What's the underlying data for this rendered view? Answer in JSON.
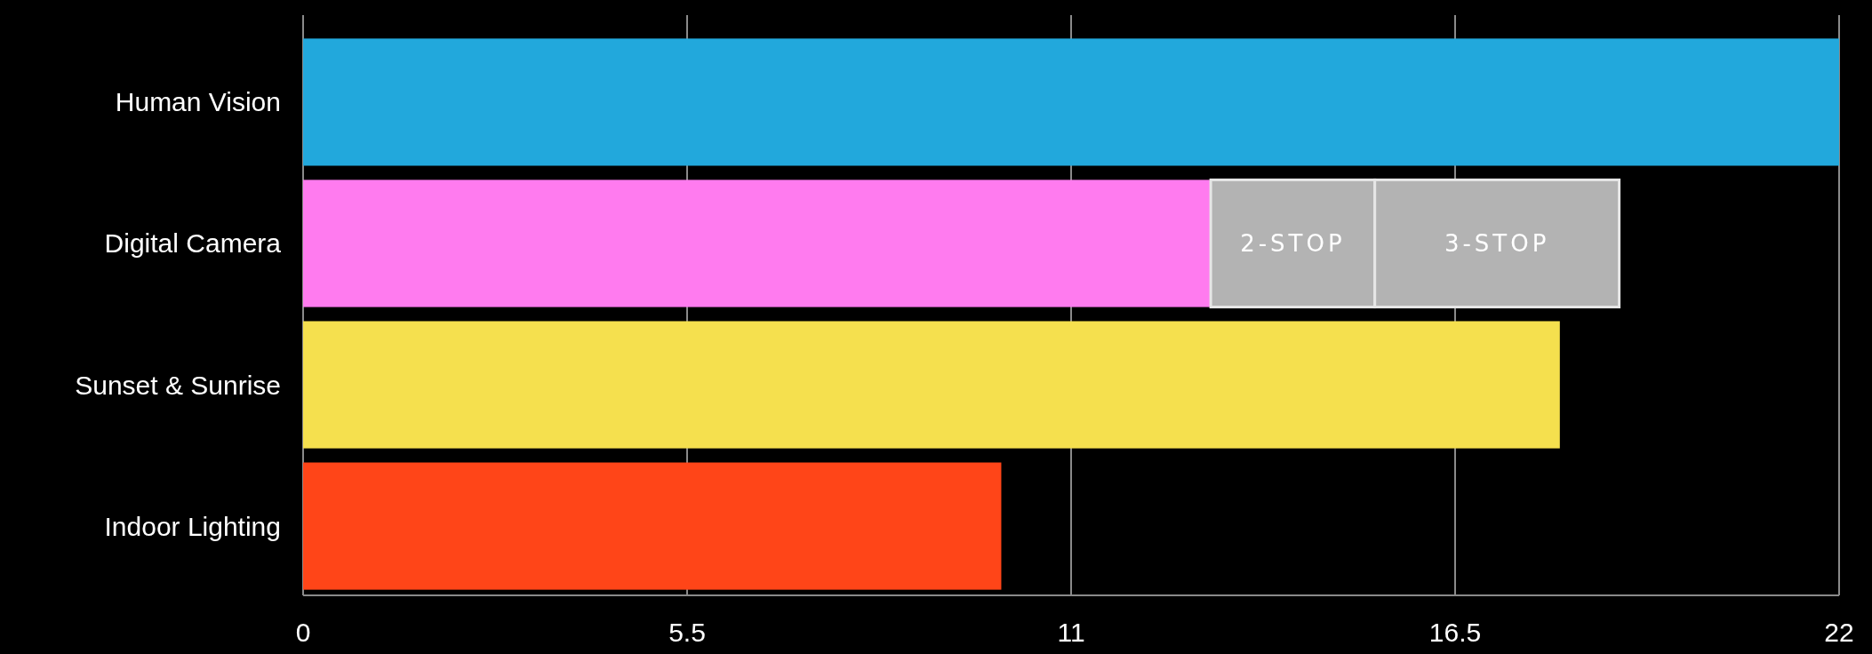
{
  "chart_data": {
    "type": "bar",
    "orientation": "horizontal",
    "stacked": true,
    "categories": [
      "Human Vision",
      "Digital Camera",
      "Sunset & Sunrise",
      "Indoor Lighting"
    ],
    "series": [
      {
        "colors": [
          "#22a8dc",
          "#ff7bef",
          "#f5e04e",
          "#ff4518"
        ],
        "values": [
          22,
          13,
          18,
          10
        ]
      },
      {
        "name": "2-STOP",
        "color": "#b3b3b3",
        "values": [
          null,
          2.35,
          null,
          null
        ]
      },
      {
        "name": "3-STOP",
        "color": "#b3b3b3",
        "values": [
          null,
          3.5,
          null,
          null
        ]
      }
    ],
    "xlim": [
      0,
      22
    ],
    "xticks": [
      0,
      5.5,
      11,
      16.5,
      22
    ],
    "grid": "x"
  }
}
